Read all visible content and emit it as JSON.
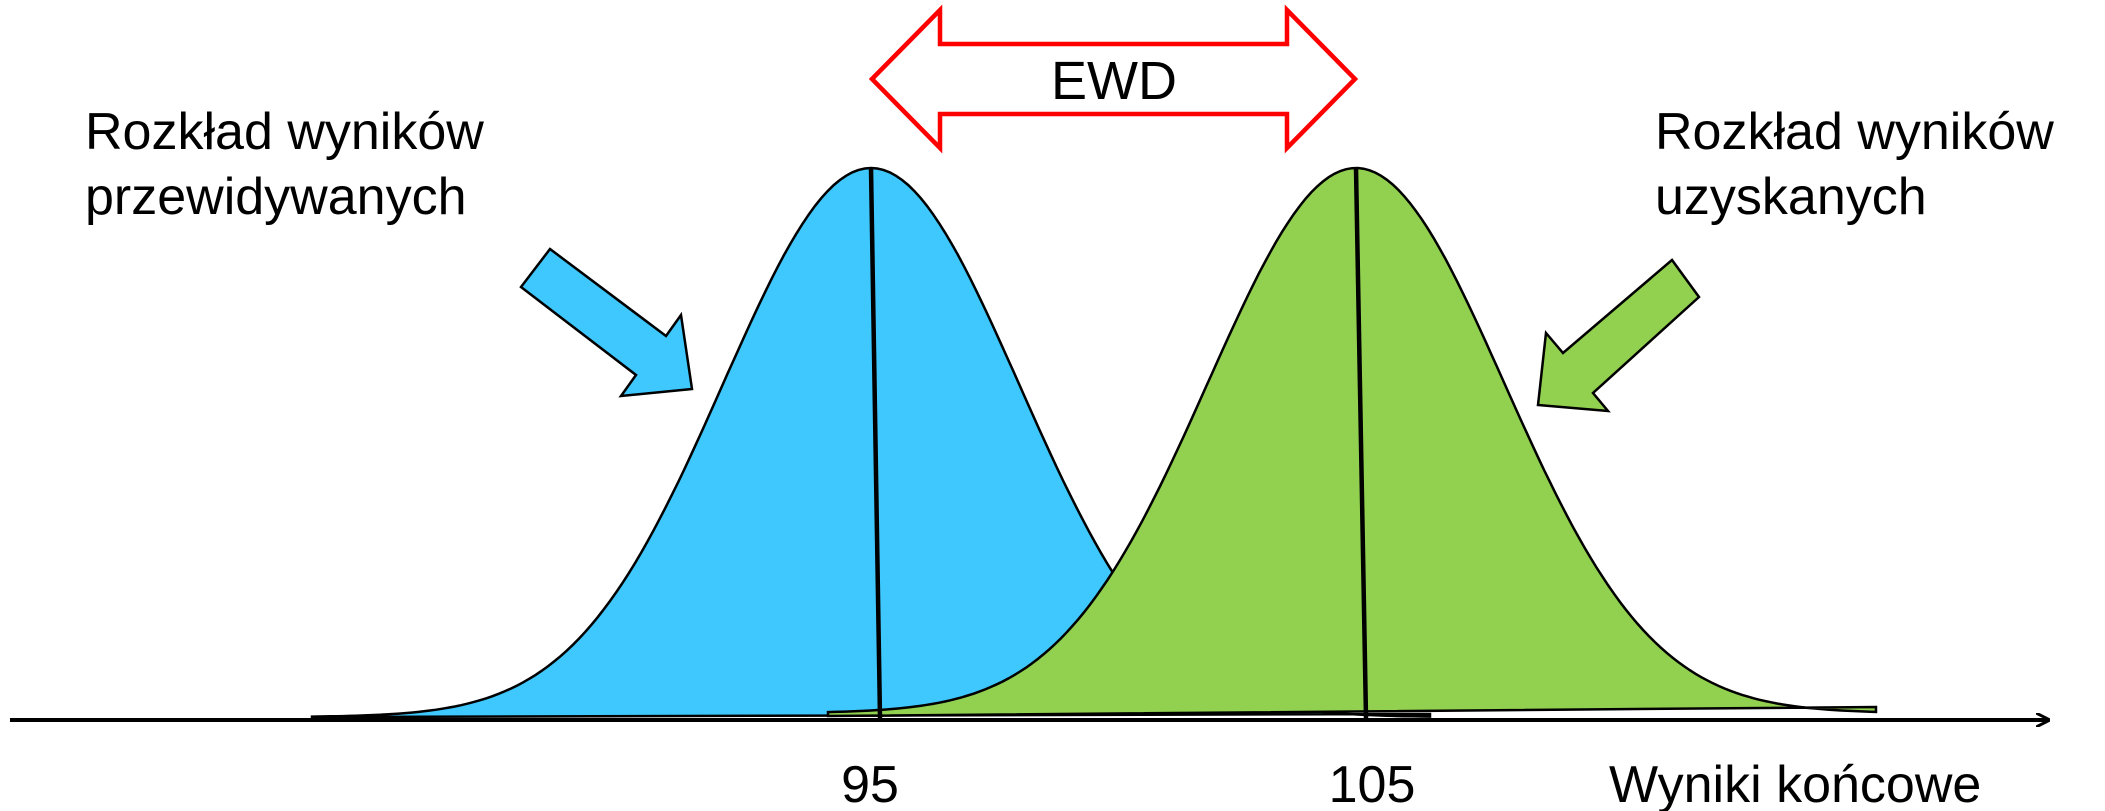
{
  "labels": {
    "predicted_line1": "Rozkład wyników",
    "predicted_line2": "przewidywanych",
    "obtained_line1": "Rozkład wyników",
    "obtained_line2": "uzyskanych",
    "ewd": "EWD",
    "axis_title": "Wyniki końcowe"
  },
  "ticks": [
    {
      "value": 95,
      "label": "95"
    },
    {
      "value": 105,
      "label": "105"
    }
  ],
  "distributions": [
    {
      "name": "predicted",
      "mean": 95,
      "color": "#3ec8fd"
    },
    {
      "name": "obtained",
      "mean": 105,
      "color": "#92d050"
    }
  ],
  "colors": {
    "ewd_arrow": "#ff0000",
    "outline": "#000000"
  }
}
